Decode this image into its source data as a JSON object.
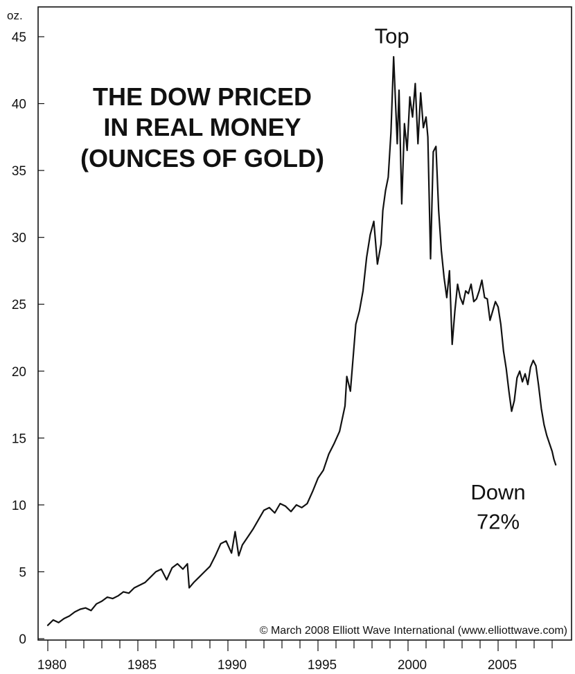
{
  "chart_data": {
    "type": "line",
    "title_lines": [
      "THE DOW PRICED",
      "IN REAL MONEY",
      "(OUNCES OF GOLD)"
    ],
    "y_unit": "oz.",
    "ylim": [
      0,
      45
    ],
    "y_ticks": [
      0,
      5,
      10,
      15,
      20,
      25,
      30,
      35,
      40,
      45
    ],
    "xlim": [
      1979.5,
      2008.7
    ],
    "x_ticks": [
      1980,
      1985,
      1990,
      1995,
      2000,
      2005
    ],
    "grid": false,
    "annotations": [
      {
        "text": "Top",
        "x": 1999.1,
        "y": 44.5
      },
      {
        "text": "Down",
        "x": 2005.0,
        "y": 10.4
      },
      {
        "text": "72%",
        "x": 2005.0,
        "y": 8.2
      }
    ],
    "credit": "© March 2008 Elliott Wave International (www.elliottwave.com)",
    "series": [
      {
        "x": [
          1980.0,
          1980.3,
          1980.6,
          1980.9,
          1981.2,
          1981.5,
          1981.8,
          1982.1,
          1982.4,
          1982.7,
          1983.0,
          1983.3,
          1983.6,
          1983.9,
          1984.2,
          1984.5,
          1984.8,
          1985.1,
          1985.4,
          1985.7,
          1986.0,
          1986.3,
          1986.6,
          1986.9,
          1987.2,
          1987.5,
          1987.75,
          1987.85,
          1988.1,
          1988.4,
          1988.7,
          1989.0,
          1989.3,
          1989.6,
          1989.9,
          1990.2,
          1990.4,
          1990.6,
          1990.8,
          1991.1,
          1991.4,
          1991.7,
          1992.0,
          1992.3,
          1992.6,
          1992.9,
          1993.2,
          1993.5,
          1993.8,
          1994.1,
          1994.4,
          1994.7,
          1995.0,
          1995.3,
          1995.6,
          1995.9,
          1996.2,
          1996.5,
          1996.6,
          1996.8,
          1997.1,
          1997.3,
          1997.5,
          1997.7,
          1997.9,
          1998.1,
          1998.3,
          1998.5,
          1998.6,
          1998.75,
          1998.9,
          1999.05,
          1999.2,
          1999.4,
          1999.5,
          1999.65,
          1999.8,
          1999.95,
          2000.1,
          2000.25,
          2000.4,
          2000.55,
          2000.7,
          2000.85,
          2001.0,
          2001.1,
          2001.25,
          2001.4,
          2001.55,
          2001.7,
          2001.85,
          2002.0,
          2002.15,
          2002.3,
          2002.45,
          2002.6,
          2002.75,
          2002.9,
          2003.05,
          2003.2,
          2003.35,
          2003.5,
          2003.65,
          2003.8,
          2003.95,
          2004.1,
          2004.25,
          2004.4,
          2004.55,
          2004.7,
          2004.85,
          2005.0,
          2005.15,
          2005.3,
          2005.45,
          2005.6,
          2005.75,
          2005.9,
          2006.05,
          2006.2,
          2006.35,
          2006.5,
          2006.65,
          2006.8,
          2006.95,
          2007.1,
          2007.25,
          2007.4,
          2007.55,
          2007.7,
          2007.85,
          2008.0,
          2008.1,
          2008.2
        ],
        "values": [
          1.0,
          1.4,
          1.2,
          1.5,
          1.7,
          2.0,
          2.2,
          2.3,
          2.1,
          2.6,
          2.8,
          3.1,
          3.0,
          3.2,
          3.5,
          3.4,
          3.8,
          4.0,
          4.2,
          4.6,
          5.0,
          5.2,
          4.4,
          5.3,
          5.6,
          5.2,
          5.6,
          3.8,
          4.2,
          4.6,
          5.0,
          5.4,
          6.2,
          7.1,
          7.3,
          6.4,
          8.0,
          6.2,
          7.0,
          7.6,
          8.2,
          8.9,
          9.6,
          9.8,
          9.4,
          10.1,
          9.9,
          9.5,
          10.0,
          9.8,
          10.1,
          11.0,
          12.0,
          12.6,
          13.8,
          14.6,
          15.5,
          17.4,
          19.6,
          18.5,
          23.5,
          24.5,
          26.0,
          28.5,
          30.2,
          31.2,
          28.0,
          29.5,
          32.0,
          33.5,
          34.5,
          37.8,
          43.5,
          37.0,
          41.0,
          32.5,
          38.5,
          36.5,
          40.5,
          39.0,
          41.5,
          37.0,
          40.8,
          38.2,
          39.0,
          37.5,
          28.4,
          36.4,
          36.8,
          32.0,
          29.0,
          27.0,
          25.5,
          27.5,
          22.0,
          24.5,
          26.5,
          25.5,
          25.0,
          26.0,
          25.8,
          26.5,
          25.2,
          25.4,
          26.0,
          26.8,
          25.5,
          25.4,
          23.8,
          24.5,
          25.2,
          24.8,
          23.5,
          21.5,
          20.2,
          18.5,
          17.0,
          17.8,
          19.5,
          20.0,
          19.2,
          19.8,
          19.0,
          20.3,
          20.8,
          20.4,
          18.9,
          17.2,
          16.0,
          15.2,
          14.6,
          14.0,
          13.4,
          13.0
        ]
      }
    ]
  }
}
